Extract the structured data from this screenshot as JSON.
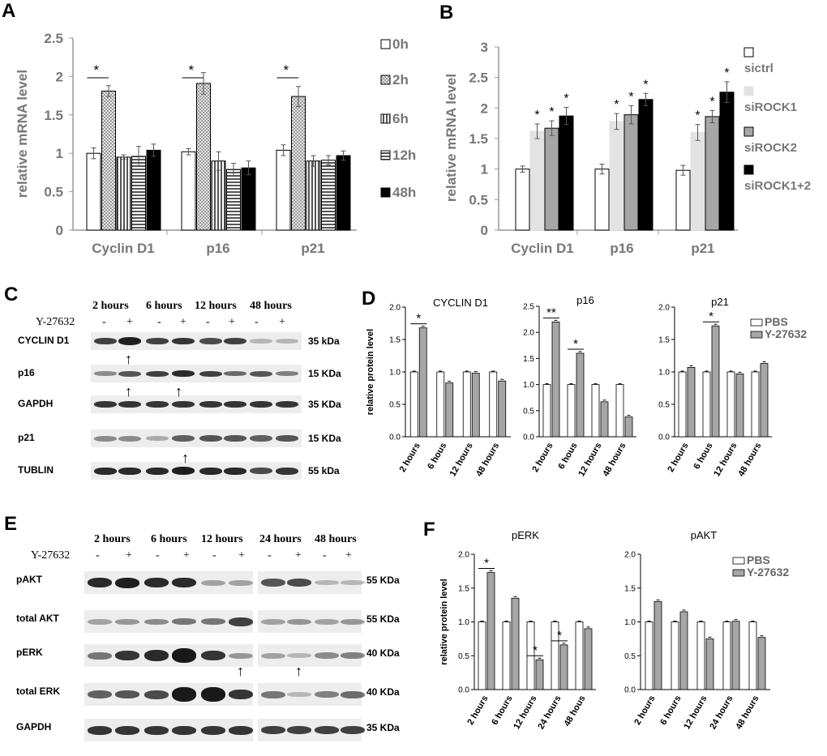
{
  "panels": {
    "A": "A",
    "B": "B",
    "C": "C",
    "D": "D",
    "E": "E",
    "F": "F"
  },
  "colors": {
    "grey_bar": "#a6a6a6",
    "light_bar": "#d9d9d9",
    "dark_bar": "#000000"
  },
  "panelA_data": {
    "type": "bar",
    "ylabel": "relative mRNA level",
    "ylim": [
      0,
      2.5
    ],
    "yticks": [
      "0",
      "0.5",
      "1",
      "1.5",
      "2",
      "2.5"
    ],
    "categories": [
      "Cyclin D1",
      "p16",
      "p21"
    ],
    "series": [
      {
        "name": "0h",
        "values": [
          1.0,
          1.02,
          1.04
        ],
        "errors": [
          0.07,
          0.04,
          0.07
        ]
      },
      {
        "name": "2h",
        "values": [
          1.81,
          1.91,
          1.74
        ],
        "errors": [
          0.07,
          0.14,
          0.13
        ]
      },
      {
        "name": "6h",
        "values": [
          0.95,
          0.9,
          0.9
        ],
        "errors": [
          0.03,
          0.12,
          0.07
        ]
      },
      {
        "name": "12h",
        "values": [
          0.96,
          0.79,
          0.91
        ],
        "errors": [
          0.13,
          0.08,
          0.06
        ]
      },
      {
        "name": "48h",
        "values": [
          1.04,
          0.81,
          0.97
        ],
        "errors": [
          0.08,
          0.09,
          0.06
        ]
      }
    ],
    "annotations": [
      "*",
      "*",
      "*"
    ]
  },
  "panelB_data": {
    "type": "bar",
    "ylabel": "relative mRNA level",
    "ylim": [
      0,
      3
    ],
    "yticks": [
      "0",
      "0.5",
      "1",
      "1.5",
      "2",
      "2.5",
      "3"
    ],
    "categories": [
      "Cyclin D1",
      "p16",
      "p21"
    ],
    "series": [
      {
        "name": "sictrl",
        "values": [
          1.0,
          1.0,
          0.98
        ],
        "errors": [
          0.05,
          0.08,
          0.08
        ]
      },
      {
        "name": "siROCK1",
        "values": [
          1.62,
          1.78,
          1.6
        ],
        "errors": [
          0.12,
          0.13,
          0.13
        ]
      },
      {
        "name": "siROCK2",
        "values": [
          1.67,
          1.89,
          1.86
        ],
        "errors": [
          0.12,
          0.15,
          0.1
        ]
      },
      {
        "name": "siROCK1+2",
        "values": [
          1.87,
          2.14,
          2.26
        ],
        "errors": [
          0.14,
          0.1,
          0.17
        ]
      }
    ],
    "annotations": [
      "*",
      "*",
      "*"
    ]
  },
  "panelC": {
    "headers": [
      "2 hours",
      "6 hours",
      "12 hours",
      "48 hours"
    ],
    "treatment": "Y-27632",
    "signs": [
      "-",
      "+",
      "-",
      "+",
      "-",
      "+",
      "-",
      "+"
    ],
    "rows": [
      {
        "label": "CYCLIN D1",
        "kda": "35 kDa"
      },
      {
        "label": "p16",
        "kda": "15 KDa"
      },
      {
        "label": "GAPDH",
        "kda": "35 KDa"
      },
      {
        "label": "p21",
        "kda": "15 KDa"
      },
      {
        "label": "TUBLIN",
        "kda": "55 kDa"
      }
    ]
  },
  "panelD_data": [
    {
      "type": "bar",
      "title": "CYCLIN D1",
      "ylabel": "relative protein level",
      "ylim": [
        0,
        2.0
      ],
      "yticks": [
        "0.0",
        "0.5",
        "1.0",
        "1.5",
        "2.0"
      ],
      "categories": [
        "2 hours",
        "6 hous",
        "12 hours",
        "48 hours"
      ],
      "series": [
        {
          "name": "PBS",
          "values": [
            1.0,
            1.0,
            1.0,
            1.0
          ]
        },
        {
          "name": "Y-27632",
          "values": [
            1.68,
            0.83,
            0.98,
            0.86
          ]
        }
      ],
      "annotations": [
        "*"
      ]
    },
    {
      "type": "bar",
      "title": "p16",
      "ylim": [
        0,
        2.5
      ],
      "yticks": [
        "0.0",
        "0.5",
        "1.0",
        "1.5",
        "2.0",
        "2.5"
      ],
      "categories": [
        "2 hours",
        "6 hous",
        "12 hours",
        "48 hours"
      ],
      "series": [
        {
          "name": "PBS",
          "values": [
            1.0,
            1.0,
            1.0,
            1.0
          ]
        },
        {
          "name": "Y-27632",
          "values": [
            2.2,
            1.6,
            0.67,
            0.38
          ]
        }
      ],
      "annotations": [
        "**",
        "*"
      ]
    },
    {
      "type": "bar",
      "title": "p21",
      "ylim": [
        0,
        2.0
      ],
      "yticks": [
        "0.0",
        "0.5",
        "1.0",
        "1.5",
        "2.0"
      ],
      "categories": [
        "2 hours",
        "6 hous",
        "12 hours",
        "48 hours"
      ],
      "series": [
        {
          "name": "PBS",
          "values": [
            1.0,
            1.0,
            1.0,
            1.0
          ]
        },
        {
          "name": "Y-27632",
          "values": [
            1.07,
            1.71,
            0.97,
            1.13
          ]
        }
      ],
      "annotations": [
        "*"
      ],
      "legend": [
        "PBS",
        "Y-27632"
      ]
    }
  ],
  "panelE": {
    "headers": [
      "2 hours",
      "6 hours",
      "12 hours",
      "24 hours",
      "48 hours"
    ],
    "treatment": "Y-27632",
    "signs": [
      "-",
      "+",
      "-",
      "+",
      "-",
      "+",
      "-",
      "+",
      "-",
      "+"
    ],
    "rows": [
      {
        "label": "pAKT",
        "kda": "55 KDa"
      },
      {
        "label": "total AKT",
        "kda": "55 KDa"
      },
      {
        "label": "pERK",
        "kda": "40 KDa"
      },
      {
        "label": "total ERK",
        "kda": "40 KDa"
      },
      {
        "label": "GAPDH",
        "kda": "35 KDa"
      }
    ]
  },
  "panelF_data": [
    {
      "type": "bar",
      "title": "pERK",
      "ylabel": "relative protein level",
      "ylim": [
        0,
        2.0
      ],
      "yticks": [
        "0.0",
        "0.5",
        "1.0",
        "1.5",
        "2.0"
      ],
      "categories": [
        "2 hours",
        "6 hours",
        "12 hours",
        "24 hours",
        "48 hous"
      ],
      "series": [
        {
          "name": "PBS",
          "values": [
            1.0,
            1.0,
            1.0,
            1.0,
            1.0
          ]
        },
        {
          "name": "Y-27632",
          "values": [
            1.73,
            1.35,
            0.44,
            0.66,
            0.9
          ]
        }
      ],
      "annotations": [
        "*",
        "*",
        "*"
      ]
    },
    {
      "type": "bar",
      "title": "pAKT",
      "ylim": [
        0,
        2.0
      ],
      "yticks": [
        "0.0",
        "0.5",
        "1.0",
        "1.5",
        "2.0"
      ],
      "categories": [
        "2 hours",
        "6 hours",
        "12 hours",
        "24 hours",
        "48 hours"
      ],
      "series": [
        {
          "name": "PBS",
          "values": [
            1.0,
            1.0,
            1.0,
            1.0,
            1.0
          ]
        },
        {
          "name": "Y-27632",
          "values": [
            1.3,
            1.15,
            0.75,
            1.01,
            0.77
          ]
        }
      ],
      "legend": [
        "PBS",
        "Y-27632"
      ]
    }
  ]
}
